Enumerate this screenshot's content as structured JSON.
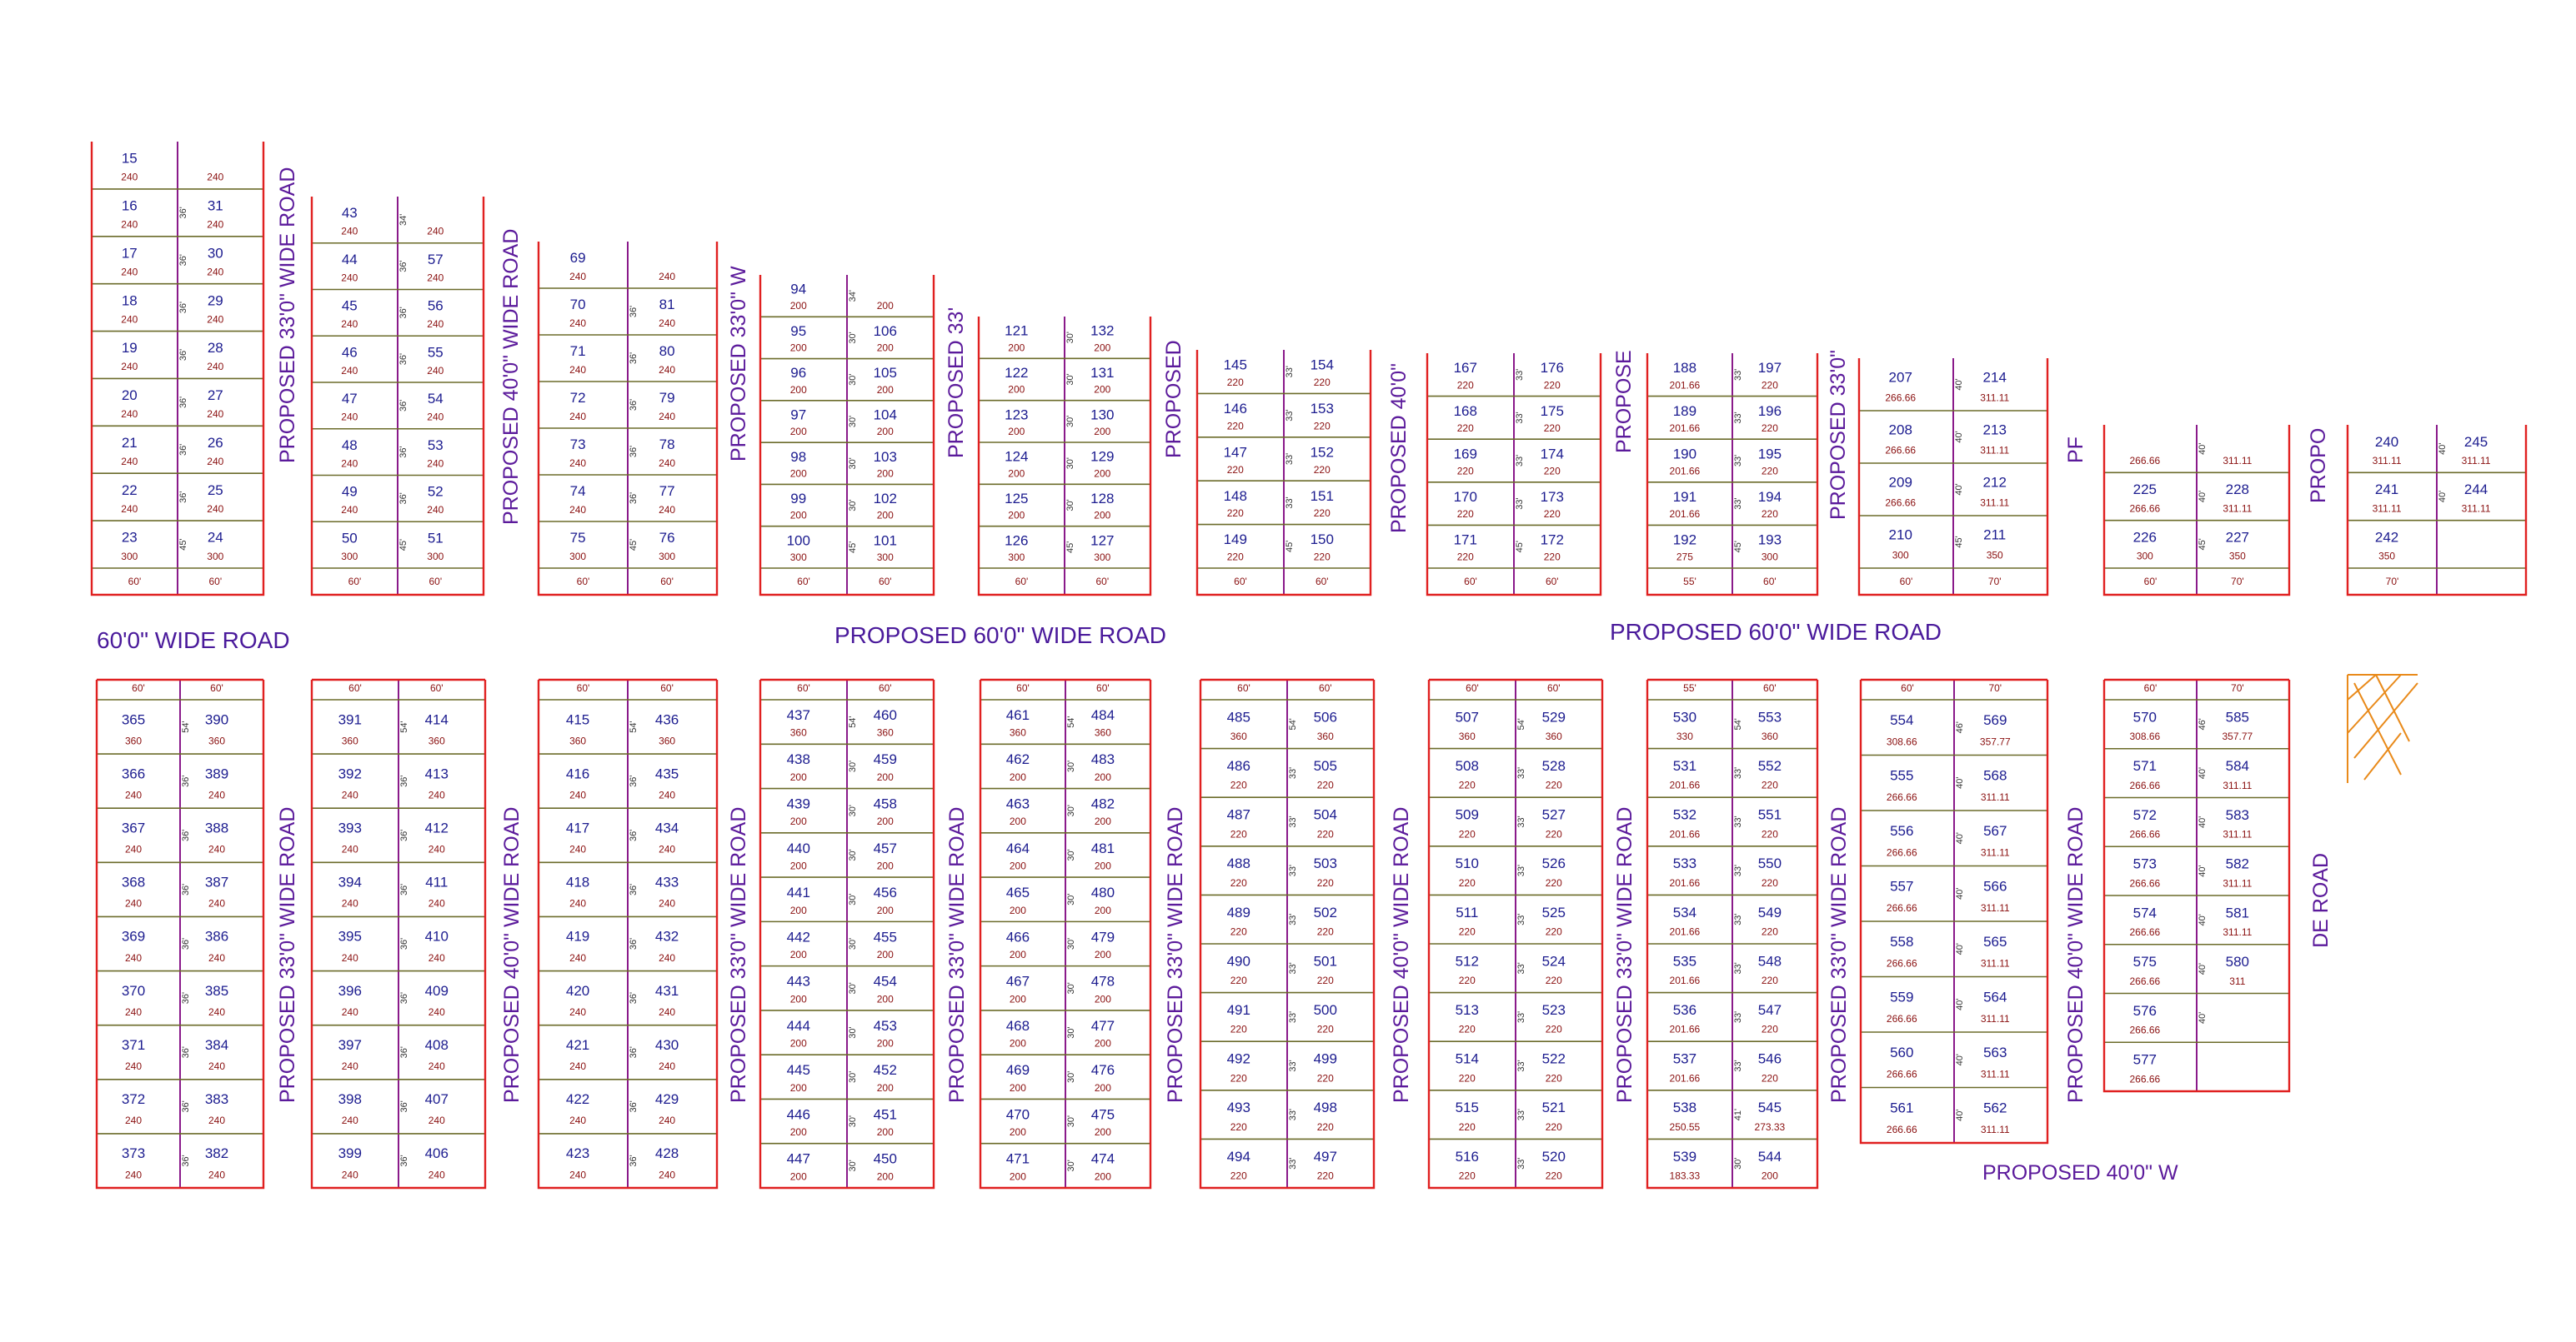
{
  "top_blocks": [
    {
      "rows": [
        [
          "15",
          "240",
          null,
          null,
          "240"
        ],
        [
          "16",
          "240",
          "36'",
          "31",
          "240"
        ],
        [
          "17",
          "240",
          "36'",
          "30",
          "240"
        ],
        [
          "18",
          "240",
          "36'",
          "29",
          "240"
        ],
        [
          "19",
          "240",
          "36'",
          "28",
          "240"
        ],
        [
          "20",
          "240",
          "36'",
          "27",
          "240"
        ],
        [
          "21",
          "240",
          "36'",
          "26",
          "240"
        ],
        [
          "22",
          "240",
          "36'",
          "25",
          "240"
        ],
        [
          "23",
          "300",
          "45'",
          "24",
          "300"
        ]
      ],
      "widths": [
        "60'",
        "60'"
      ]
    },
    {
      "rows": [
        [
          "43",
          "240",
          "34'",
          null,
          "240"
        ],
        [
          "44",
          "240",
          "36'",
          "57",
          "240"
        ],
        [
          "45",
          "240",
          "36'",
          "56",
          "240"
        ],
        [
          "46",
          "240",
          "36'",
          "55",
          "240"
        ],
        [
          "47",
          "240",
          "36'",
          "54",
          "240"
        ],
        [
          "48",
          "240",
          "36'",
          "53",
          "240"
        ],
        [
          "49",
          "240",
          "36'",
          "52",
          "240"
        ],
        [
          "50",
          "300",
          "45'",
          "51",
          "300"
        ]
      ],
      "widths": [
        "60'",
        "60'"
      ]
    },
    {
      "rows": [
        [
          "69",
          "240",
          null,
          null,
          "240"
        ],
        [
          "70",
          "240",
          "36'",
          "81",
          "240"
        ],
        [
          "71",
          "240",
          "36'",
          "80",
          "240"
        ],
        [
          "72",
          "240",
          "36'",
          "79",
          "240"
        ],
        [
          "73",
          "240",
          "36'",
          "78",
          "240"
        ],
        [
          "74",
          "240",
          "36'",
          "77",
          "240"
        ],
        [
          "75",
          "300",
          "45'",
          "76",
          "300"
        ]
      ],
      "widths": [
        "60'",
        "60'"
      ]
    },
    {
      "rows": [
        [
          "94",
          "200",
          "34'",
          null,
          "200"
        ],
        [
          "95",
          "200",
          "30'",
          "106",
          "200"
        ],
        [
          "96",
          "200",
          "30'",
          "105",
          "200"
        ],
        [
          "97",
          "200",
          "30'",
          "104",
          "200"
        ],
        [
          "98",
          "200",
          "30'",
          "103",
          "200"
        ],
        [
          "99",
          "200",
          "30'",
          "102",
          "200"
        ],
        [
          "100",
          "300",
          "45'",
          "101",
          "300"
        ]
      ],
      "widths": [
        "60'",
        "60'"
      ]
    },
    {
      "rows": [
        [
          "121",
          "200",
          "30'",
          "132",
          "200"
        ],
        [
          "122",
          "200",
          "30'",
          "131",
          "200"
        ],
        [
          "123",
          "200",
          "30'",
          "130",
          "200"
        ],
        [
          "124",
          "200",
          "30'",
          "129",
          "200"
        ],
        [
          "125",
          "200",
          "30'",
          "128",
          "200"
        ],
        [
          "126",
          "300",
          "45'",
          "127",
          "300"
        ]
      ],
      "widths": [
        "60'",
        "60'"
      ]
    },
    {
      "rows": [
        [
          "145",
          "220",
          "33'",
          "154",
          "220"
        ],
        [
          "146",
          "220",
          "33'",
          "153",
          "220"
        ],
        [
          "147",
          "220",
          "33'",
          "152",
          "220"
        ],
        [
          "148",
          "220",
          "33'",
          "151",
          "220"
        ],
        [
          "149",
          "220",
          "45'",
          "150",
          "220"
        ]
      ],
      "widths": [
        "60'",
        "60'"
      ]
    },
    {
      "rows": [
        [
          "167",
          "220",
          "33'",
          "176",
          "220"
        ],
        [
          "168",
          "220",
          "33'",
          "175",
          "220"
        ],
        [
          "169",
          "220",
          "33'",
          "174",
          "220"
        ],
        [
          "170",
          "220",
          "33'",
          "173",
          "220"
        ],
        [
          "171",
          "220",
          "45'",
          "172",
          "220"
        ]
      ],
      "widths": [
        "60'",
        "60'"
      ]
    },
    {
      "rows": [
        [
          "188",
          "201.66",
          "33'",
          "197",
          "220"
        ],
        [
          "189",
          "201.66",
          "33'",
          "196",
          "220"
        ],
        [
          "190",
          "201.66",
          "33'",
          "195",
          "220"
        ],
        [
          "191",
          "201.66",
          "33'",
          "194",
          "220"
        ],
        [
          "192",
          "275",
          "45'",
          "193",
          "300"
        ]
      ],
      "widths": [
        "55'",
        "60'"
      ]
    },
    {
      "rows": [
        [
          "207",
          "266.66",
          "40'",
          "214",
          "311.11"
        ],
        [
          "208",
          "266.66",
          "40'",
          "213",
          "311.11"
        ],
        [
          "209",
          "266.66",
          "40'",
          "212",
          "311.11"
        ],
        [
          "210",
          "300",
          "45'",
          "211",
          "350"
        ]
      ],
      "widths": [
        "60'",
        "70'"
      ]
    },
    {
      "rows": [
        [
          null,
          "266.66",
          "40'",
          null,
          "311.11"
        ],
        [
          "225",
          "266.66",
          "40'",
          "228",
          "311.11"
        ],
        [
          "226",
          "300",
          "45'",
          "227",
          "350"
        ]
      ],
      "widths": [
        "60'",
        "70'"
      ]
    },
    {
      "rows": [
        [
          "240",
          "311.11",
          "40'",
          "245",
          "311.11"
        ],
        [
          "241",
          "311.11",
          "40'",
          "244",
          "311.11"
        ],
        [
          "242",
          "350",
          null,
          null,
          null
        ]
      ],
      "widths": [
        "70'",
        null
      ]
    }
  ],
  "top_roads": [
    "PROPOSED 33'0\" WIDE ROAD",
    "PROPOSED 40'0\" WIDE ROAD",
    "PROPOSED 33'0\" W",
    "PROPOSED 33'",
    "PROPOSED",
    "PROPOSED 40'0\"",
    "PROPOSE",
    "PROPOSED 33'0\"",
    "PF",
    "PROPO"
  ],
  "main_roads": [
    "60'0\" WIDE ROAD",
    "PROPOSED 60'0\" WIDE ROAD",
    "PROPOSED 60'0\" WIDE ROAD"
  ],
  "bottom_blocks": [
    {
      "widths": [
        "60'",
        "60'"
      ],
      "rows": [
        [
          "365",
          "360",
          "54'",
          "390",
          "360"
        ],
        [
          "366",
          "240",
          "36'",
          "389",
          "240"
        ],
        [
          "367",
          "240",
          "36'",
          "388",
          "240"
        ],
        [
          "368",
          "240",
          "36'",
          "387",
          "240"
        ],
        [
          "369",
          "240",
          "36'",
          "386",
          "240"
        ],
        [
          "370",
          "240",
          "36'",
          "385",
          "240"
        ],
        [
          "371",
          "240",
          "36'",
          "384",
          "240"
        ],
        [
          "372",
          "240",
          "36'",
          "383",
          "240"
        ],
        [
          "373",
          "240",
          "36'",
          "382",
          "240"
        ]
      ]
    },
    {
      "widths": [
        "60'",
        "60'"
      ],
      "rows": [
        [
          "391",
          "360",
          "54'",
          "414",
          "360"
        ],
        [
          "392",
          "240",
          "36'",
          "413",
          "240"
        ],
        [
          "393",
          "240",
          "36'",
          "412",
          "240"
        ],
        [
          "394",
          "240",
          "36'",
          "411",
          "240"
        ],
        [
          "395",
          "240",
          "36'",
          "410",
          "240"
        ],
        [
          "396",
          "240",
          "36'",
          "409",
          "240"
        ],
        [
          "397",
          "240",
          "36'",
          "408",
          "240"
        ],
        [
          "398",
          "240",
          "36'",
          "407",
          "240"
        ],
        [
          "399",
          "240",
          "36'",
          "406",
          "240"
        ]
      ]
    },
    {
      "widths": [
        "60'",
        "60'"
      ],
      "rows": [
        [
          "415",
          "360",
          "54'",
          "436",
          "360"
        ],
        [
          "416",
          "240",
          "36'",
          "435",
          "240"
        ],
        [
          "417",
          "240",
          "36'",
          "434",
          "240"
        ],
        [
          "418",
          "240",
          "36'",
          "433",
          "240"
        ],
        [
          "419",
          "240",
          "36'",
          "432",
          "240"
        ],
        [
          "420",
          "240",
          "36'",
          "431",
          "240"
        ],
        [
          "421",
          "240",
          "36'",
          "430",
          "240"
        ],
        [
          "422",
          "240",
          "36'",
          "429",
          "240"
        ],
        [
          "423",
          "240",
          "36'",
          "428",
          "240"
        ]
      ]
    },
    {
      "widths": [
        "60'",
        "60'"
      ],
      "rows": [
        [
          "437",
          "360",
          "54'",
          "460",
          "360"
        ],
        [
          "438",
          "200",
          "30'",
          "459",
          "200"
        ],
        [
          "439",
          "200",
          "30'",
          "458",
          "200"
        ],
        [
          "440",
          "200",
          "30'",
          "457",
          "200"
        ],
        [
          "441",
          "200",
          "30'",
          "456",
          "200"
        ],
        [
          "442",
          "200",
          "30'",
          "455",
          "200"
        ],
        [
          "443",
          "200",
          "30'",
          "454",
          "200"
        ],
        [
          "444",
          "200",
          "30'",
          "453",
          "200"
        ],
        [
          "445",
          "200",
          "30'",
          "452",
          "200"
        ],
        [
          "446",
          "200",
          "30'",
          "451",
          "200"
        ],
        [
          "447",
          "200",
          "30'",
          "450",
          "200"
        ]
      ]
    },
    {
      "widths": [
        "60'",
        "60'"
      ],
      "rows": [
        [
          "461",
          "360",
          "54'",
          "484",
          "360"
        ],
        [
          "462",
          "200",
          "30'",
          "483",
          "200"
        ],
        [
          "463",
          "200",
          "30'",
          "482",
          "200"
        ],
        [
          "464",
          "200",
          "30'",
          "481",
          "200"
        ],
        [
          "465",
          "200",
          "30'",
          "480",
          "200"
        ],
        [
          "466",
          "200",
          "30'",
          "479",
          "200"
        ],
        [
          "467",
          "200",
          "30'",
          "478",
          "200"
        ],
        [
          "468",
          "200",
          "30'",
          "477",
          "200"
        ],
        [
          "469",
          "200",
          "30'",
          "476",
          "200"
        ],
        [
          "470",
          "200",
          "30'",
          "475",
          "200"
        ],
        [
          "471",
          "200",
          "30'",
          "474",
          "200"
        ]
      ]
    },
    {
      "widths": [
        "60'",
        "60'"
      ],
      "rows": [
        [
          "485",
          "360",
          "54'",
          "506",
          "360"
        ],
        [
          "486",
          "220",
          "33'",
          "505",
          "220"
        ],
        [
          "487",
          "220",
          "33'",
          "504",
          "220"
        ],
        [
          "488",
          "220",
          "33'",
          "503",
          "220"
        ],
        [
          "489",
          "220",
          "33'",
          "502",
          "220"
        ],
        [
          "490",
          "220",
          "33'",
          "501",
          "220"
        ],
        [
          "491",
          "220",
          "33'",
          "500",
          "220"
        ],
        [
          "492",
          "220",
          "33'",
          "499",
          "220"
        ],
        [
          "493",
          "220",
          "33'",
          "498",
          "220"
        ],
        [
          "494",
          "220",
          "33'",
          "497",
          "220"
        ]
      ]
    },
    {
      "widths": [
        "60'",
        "60'"
      ],
      "rows": [
        [
          "507",
          "360",
          "54'",
          "529",
          "360"
        ],
        [
          "508",
          "220",
          "33'",
          "528",
          "220"
        ],
        [
          "509",
          "220",
          "33'",
          "527",
          "220"
        ],
        [
          "510",
          "220",
          "33'",
          "526",
          "220"
        ],
        [
          "511",
          "220",
          "33'",
          "525",
          "220"
        ],
        [
          "512",
          "220",
          "33'",
          "524",
          "220"
        ],
        [
          "513",
          "220",
          "33'",
          "523",
          "220"
        ],
        [
          "514",
          "220",
          "33'",
          "522",
          "220"
        ],
        [
          "515",
          "220",
          "33'",
          "521",
          "220"
        ],
        [
          "516",
          "220",
          "33'",
          "520",
          "220"
        ]
      ]
    },
    {
      "widths": [
        "55'",
        "60'"
      ],
      "rows": [
        [
          "530",
          "330",
          "54'",
          "553",
          "360"
        ],
        [
          "531",
          "201.66",
          "33'",
          "552",
          "220"
        ],
        [
          "532",
          "201.66",
          "33'",
          "551",
          "220"
        ],
        [
          "533",
          "201.66",
          "33'",
          "550",
          "220"
        ],
        [
          "534",
          "201.66",
          "33'",
          "549",
          "220"
        ],
        [
          "535",
          "201.66",
          "33'",
          "548",
          "220"
        ],
        [
          "536",
          "201.66",
          "33'",
          "547",
          "220"
        ],
        [
          "537",
          "201.66",
          "33'",
          "546",
          "220"
        ],
        [
          "538",
          "250.55",
          "41'",
          "545",
          "273.33"
        ],
        [
          "539",
          "183.33",
          "30'",
          "544",
          "200"
        ]
      ]
    },
    {
      "widths": [
        "60'",
        "70'"
      ],
      "rows": [
        [
          "554",
          "308.66",
          "46'",
          "569",
          "357.77"
        ],
        [
          "555",
          "266.66",
          "40'",
          "568",
          "311.11"
        ],
        [
          "556",
          "266.66",
          "40'",
          "567",
          "311.11"
        ],
        [
          "557",
          "266.66",
          "40'",
          "566",
          "311.11"
        ],
        [
          "558",
          "266.66",
          "40'",
          "565",
          "311.11"
        ],
        [
          "559",
          "266.66",
          "40'",
          "564",
          "311.11"
        ],
        [
          "560",
          "266.66",
          "40'",
          "563",
          "311.11"
        ],
        [
          "561",
          "266.66",
          "40'",
          "562",
          "311.11"
        ]
      ]
    },
    {
      "widths": [
        "60'",
        "70'"
      ],
      "rows": [
        [
          "570",
          "308.66",
          "46'",
          "585",
          "357.77"
        ],
        [
          "571",
          "266.66",
          "40'",
          "584",
          "311.11"
        ],
        [
          "572",
          "266.66",
          "40'",
          "583",
          "311.11"
        ],
        [
          "573",
          "266.66",
          "40'",
          "582",
          "311.11"
        ],
        [
          "574",
          "266.66",
          "40'",
          "581",
          "311.11"
        ],
        [
          "575",
          "266.66",
          "40'",
          "580",
          "311"
        ],
        [
          "576",
          "266.66",
          "40'",
          null,
          null
        ],
        [
          "577",
          "266.66",
          null,
          null,
          null
        ]
      ]
    }
  ],
  "bottom_roads": [
    "PROPOSED 33'0\"  WIDE ROAD",
    "PROPOSED 40'0\" WIDE ROAD",
    "PROPOSED 33'0\"  WIDE ROAD",
    "PROPOSED 33'0\"  WIDE ROAD",
    "PROPOSED 33'0\"  WIDE ROAD",
    "PROPOSED 40'0\" WIDE ROAD",
    "PROPOSED 33'0\"  WIDE ROAD",
    "PROPOSED 33'0\"  WIDE ROAD",
    "PROPOSED 40'0\" WIDE ROAD",
    "DE ROAD"
  ],
  "bottom_road_label": "PROPOSED 40'0\" W"
}
